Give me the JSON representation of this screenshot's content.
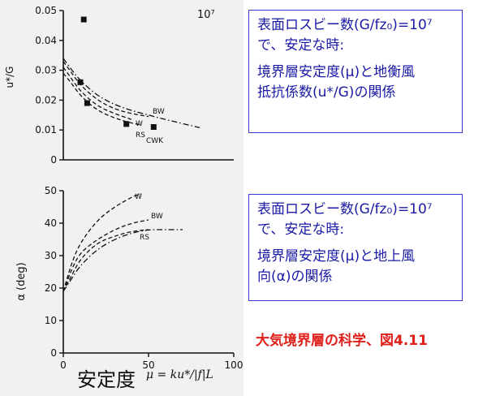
{
  "chart_data": [
    {
      "type": "line",
      "ylabel": "u*/G",
      "xlim": [
        0,
        100
      ],
      "ylim": [
        0,
        0.05
      ],
      "x_ticks": [],
      "y_ticks": [
        "0",
        "0.01",
        "0.02",
        "0.03",
        "0.04",
        "0.05"
      ],
      "annotation": "10⁷",
      "grid": false,
      "series": [
        {
          "name": "BW",
          "x": [
            0,
            5,
            10,
            20,
            30,
            40,
            50
          ],
          "y": [
            0.033,
            0.029,
            0.025,
            0.02,
            0.017,
            0.0155,
            0.0145
          ]
        },
        {
          "name": "W",
          "x": [
            0,
            5,
            10,
            20,
            30,
            40
          ],
          "y": [
            0.031,
            0.027,
            0.023,
            0.018,
            0.0155,
            0.0135
          ]
        },
        {
          "name": "RS",
          "x": [
            0,
            5,
            10,
            20,
            30,
            40,
            45
          ],
          "y": [
            0.029,
            0.0255,
            0.0215,
            0.0165,
            0.014,
            0.0123,
            0.0118
          ]
        },
        {
          "name": "CWK",
          "x": [
            0,
            5,
            10,
            20,
            30,
            40,
            50,
            60,
            80
          ],
          "y": [
            0.034,
            0.03,
            0.0265,
            0.0215,
            0.0185,
            0.0165,
            0.015,
            0.0135,
            0.0108
          ]
        }
      ],
      "points": [
        {
          "x": 12,
          "y": 0.047
        },
        {
          "x": 10,
          "y": 0.026
        },
        {
          "x": 14,
          "y": 0.019
        },
        {
          "x": 37,
          "y": 0.012
        },
        {
          "x": 53,
          "y": 0.011
        }
      ]
    },
    {
      "type": "line",
      "ylabel": "α (deg)",
      "xlim": [
        0,
        100
      ],
      "ylim": [
        0,
        50
      ],
      "x_ticks": [
        "0",
        "50",
        "100"
      ],
      "y_ticks": [
        "0",
        "10",
        "20",
        "30",
        "40",
        "50"
      ],
      "grid": false,
      "series": [
        {
          "name": "W",
          "x": [
            0,
            5,
            10,
            20,
            30,
            40,
            45
          ],
          "y": [
            19,
            28,
            34,
            41,
            45,
            48,
            49
          ]
        },
        {
          "name": "BW",
          "x": [
            0,
            5,
            10,
            20,
            30,
            40,
            50
          ],
          "y": [
            19,
            26,
            31,
            35,
            38,
            40,
            41
          ]
        },
        {
          "name": "RS",
          "x": [
            0,
            5,
            10,
            20,
            30,
            40,
            50,
            60,
            70
          ],
          "y": [
            19,
            23,
            27,
            32,
            35,
            37,
            38,
            38,
            38
          ]
        },
        {
          "name": "",
          "x": [
            0,
            5,
            10,
            20,
            30,
            40,
            50
          ],
          "y": [
            19,
            24,
            29,
            34,
            36,
            37.5,
            38
          ]
        }
      ]
    }
  ],
  "xaxis_title": "安定度",
  "xaxis_formula": "μ = ku*/|f|L",
  "box1": {
    "line1": "表面ロスビー数(G/fz₀)=10⁷",
    "line2": "で、安定な時:",
    "line3": "境界層安定度(μ)と地衡風",
    "line4": "抵抗係数(u*/G)の関係"
  },
  "box2": {
    "line1": "表面ロスビー数(G/fz₀)=10⁷",
    "line2": "で、安定な時:",
    "line3": "境界層安定度(μ)と地上風",
    "line4": "向(α)の関係"
  },
  "caption": "大気境界層の科学、図4.11",
  "colors": {
    "ink": "#111111",
    "box_text": "#1a1aa6",
    "box_border": "#3a3ad0",
    "caption": "#e0201a"
  }
}
